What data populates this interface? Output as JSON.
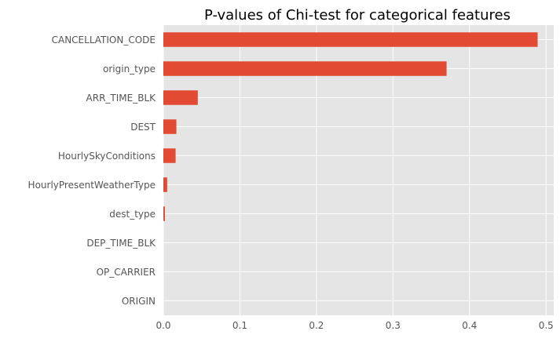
{
  "chart_data": {
    "type": "bar",
    "orientation": "horizontal",
    "title": "P-values of Chi-test for categorical features",
    "xlabel": "",
    "ylabel": "",
    "categories": [
      "CANCELLATION_CODE",
      "origin_type",
      "ARR_TIME_BLK",
      "DEST",
      "HourlySkyConditions",
      "HourlyPresentWeatherType",
      "dest_type",
      "DEP_TIME_BLK",
      "OP_CARRIER",
      "ORIGIN"
    ],
    "values": [
      0.489,
      0.37,
      0.045,
      0.017,
      0.016,
      0.005,
      0.002,
      0.0,
      0.0,
      0.0
    ],
    "xlim": [
      0,
      0.51
    ],
    "x_ticks": [
      "0.0",
      "0.1",
      "0.2",
      "0.3",
      "0.4",
      "0.5"
    ],
    "x_tick_values": [
      0,
      0.1,
      0.2,
      0.3,
      0.4,
      0.5
    ],
    "grid": true,
    "legend": "none",
    "colors": {
      "bar": "#E24A33",
      "background": "#E5E5E5",
      "grid": "#FFFFFF"
    }
  }
}
